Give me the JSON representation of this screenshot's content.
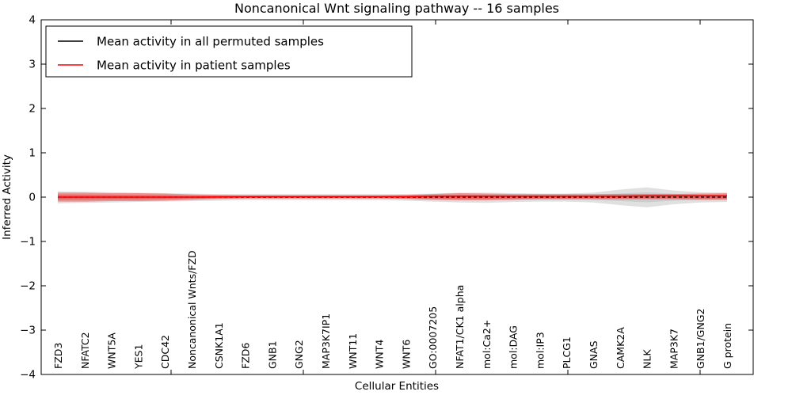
{
  "chart_data": {
    "type": "line",
    "title": "Noncanonical Wnt signaling pathway -- 16 samples",
    "xlabel": "Cellular Entities",
    "ylabel": "Inferred Activity",
    "ylim": [
      -4,
      4
    ],
    "ytick_values": [
      4,
      3,
      2,
      1,
      0,
      -1,
      -2,
      -3,
      -4
    ],
    "ytick_labels": [
      "4",
      "3",
      "2",
      "1",
      "0",
      "−1",
      "−2",
      "−3",
      "−4"
    ],
    "grid": false,
    "legend_position": "upper left",
    "entities": [
      "FZD3",
      "NFATC2",
      "WNT5A",
      "YES1",
      "CDC42",
      "Noncanonical Wnts/FZD",
      "CSNK1A1",
      "FZD6",
      "GNB1",
      "GNG2",
      "MAP3K7IP1",
      "WNT11",
      "WNT4",
      "WNT6",
      "GO:0007205",
      "NFAT1/CK1 alpha",
      "mol:Ca2+",
      "mol:DAG",
      "mol:IP3",
      "PLCG1",
      "GNAS",
      "CAMK2A",
      "NLK",
      "MAP3K7",
      "GNB1/GNG2",
      "G protein"
    ],
    "series": [
      {
        "name": "Mean activity in all permuted samples",
        "color": "#000000",
        "line_style": "dashed",
        "values": [
          0,
          0,
          0,
          0,
          0,
          0,
          0,
          0,
          0,
          0,
          0,
          0,
          0,
          0,
          0,
          0,
          0,
          0,
          0,
          0,
          0,
          0,
          0,
          0,
          0,
          0
        ]
      },
      {
        "name": "Mean activity in patient samples",
        "color": "#ff0000",
        "line_style": "solid",
        "values": [
          0,
          0,
          0,
          0,
          0,
          0,
          0.005,
          0.01,
          0.01,
          0.01,
          0.01,
          0.01,
          0.01,
          0.01,
          0.02,
          0.02,
          0.02,
          0.02,
          0.02,
          0.02,
          0.02,
          0.02,
          0.03,
          0.03,
          0.03,
          0.03
        ]
      }
    ],
    "bands": [
      {
        "name": "permuted-activity-range",
        "color": "#000000",
        "opacity": 0.12,
        "upper": [
          0.13,
          0.12,
          0.11,
          0.1,
          0.09,
          0.08,
          0.07,
          0.07,
          0.07,
          0.07,
          0.07,
          0.07,
          0.07,
          0.07,
          0.08,
          0.1,
          0.1,
          0.09,
          0.08,
          0.08,
          0.1,
          0.17,
          0.22,
          0.15,
          0.11,
          0.1
        ],
        "lower": [
          -0.14,
          -0.13,
          -0.12,
          -0.11,
          -0.1,
          -0.09,
          -0.08,
          -0.07,
          -0.07,
          -0.07,
          -0.07,
          -0.07,
          -0.07,
          -0.08,
          -0.1,
          -0.12,
          -0.13,
          -0.11,
          -0.1,
          -0.1,
          -0.12,
          -0.18,
          -0.23,
          -0.16,
          -0.12,
          -0.11
        ]
      },
      {
        "name": "patient-activity-range",
        "color": "#ff0000",
        "opacity": 0.35,
        "upper": [
          0.1,
          0.1,
          0.09,
          0.09,
          0.08,
          0.06,
          0.05,
          0.04,
          0.04,
          0.04,
          0.04,
          0.04,
          0.04,
          0.05,
          0.07,
          0.09,
          0.08,
          0.07,
          0.07,
          0.07,
          0.07,
          0.07,
          0.07,
          0.07,
          0.08,
          0.09
        ],
        "lower": [
          -0.1,
          -0.1,
          -0.09,
          -0.09,
          -0.08,
          -0.06,
          -0.04,
          -0.03,
          -0.03,
          -0.03,
          -0.03,
          -0.03,
          -0.03,
          -0.04,
          -0.06,
          -0.07,
          -0.07,
          -0.06,
          -0.05,
          -0.05,
          -0.05,
          -0.05,
          -0.05,
          -0.05,
          -0.06,
          -0.06
        ]
      }
    ]
  },
  "legend": {
    "items": [
      {
        "label": "Mean activity in all permuted samples",
        "color": "#000000"
      },
      {
        "label": "Mean activity in patient samples",
        "color": "#ff0000"
      }
    ]
  }
}
